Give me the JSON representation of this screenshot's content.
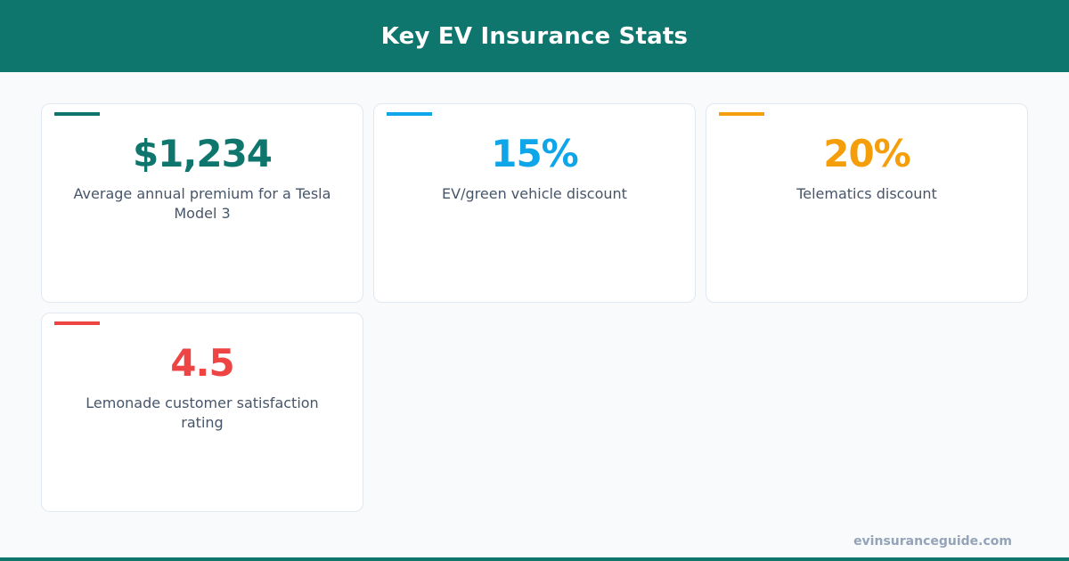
{
  "header": {
    "title": "Key EV Insurance Stats"
  },
  "stats": [
    {
      "value": "$1,234",
      "label": "Average annual premium for a Tesla Model 3",
      "color": "#0f766e"
    },
    {
      "value": "15%",
      "label": "EV/green vehicle discount",
      "color": "#0ea5e9"
    },
    {
      "value": "20%",
      "label": "Telematics discount",
      "color": "#f59e0b"
    },
    {
      "value": "4.5",
      "label": "Lemonade customer satisfaction rating",
      "color": "#ef4444"
    }
  ],
  "footer": {
    "site": "evinsuranceguide.com"
  }
}
